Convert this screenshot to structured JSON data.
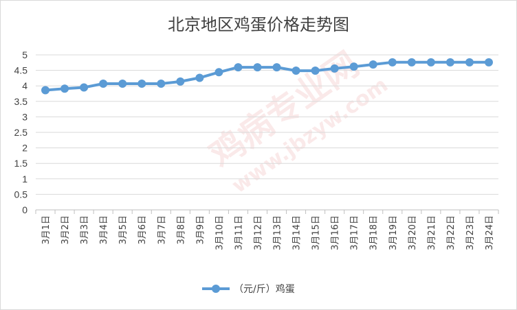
{
  "chart_data": {
    "type": "line",
    "title": "北京地区鸡蛋价格走势图",
    "categories": [
      "3月1日",
      "3月2日",
      "3月3日",
      "3月4日",
      "3月5日",
      "3月6日",
      "3月7日",
      "3月8日",
      "3月9日",
      "3月10日",
      "3月11日",
      "3月12日",
      "3月13日",
      "3月14日",
      "3月15日",
      "3月16日",
      "3月17日",
      "3月18日",
      "3月19日",
      "3月20日",
      "3月21日",
      "3月22日",
      "3月23日",
      "3月24日"
    ],
    "series": [
      {
        "name": "（元/斤）鸡蛋",
        "color": "#5b9bd5",
        "values": [
          3.86,
          3.91,
          3.95,
          4.07,
          4.07,
          4.07,
          4.07,
          4.14,
          4.26,
          4.44,
          4.6,
          4.6,
          4.6,
          4.49,
          4.49,
          4.56,
          4.62,
          4.69,
          4.76,
          4.76,
          4.76,
          4.76,
          4.76,
          4.76
        ]
      }
    ],
    "ylim": [
      0,
      5
    ],
    "yticks": [
      "0",
      "0.5",
      "1",
      "1.5",
      "2",
      "2.5",
      "3",
      "3.5",
      "4",
      "4.5",
      "5"
    ],
    "grid": true,
    "legend": "bottom",
    "watermark": [
      "鸡病专业网",
      "www.jbzyw.com"
    ]
  }
}
